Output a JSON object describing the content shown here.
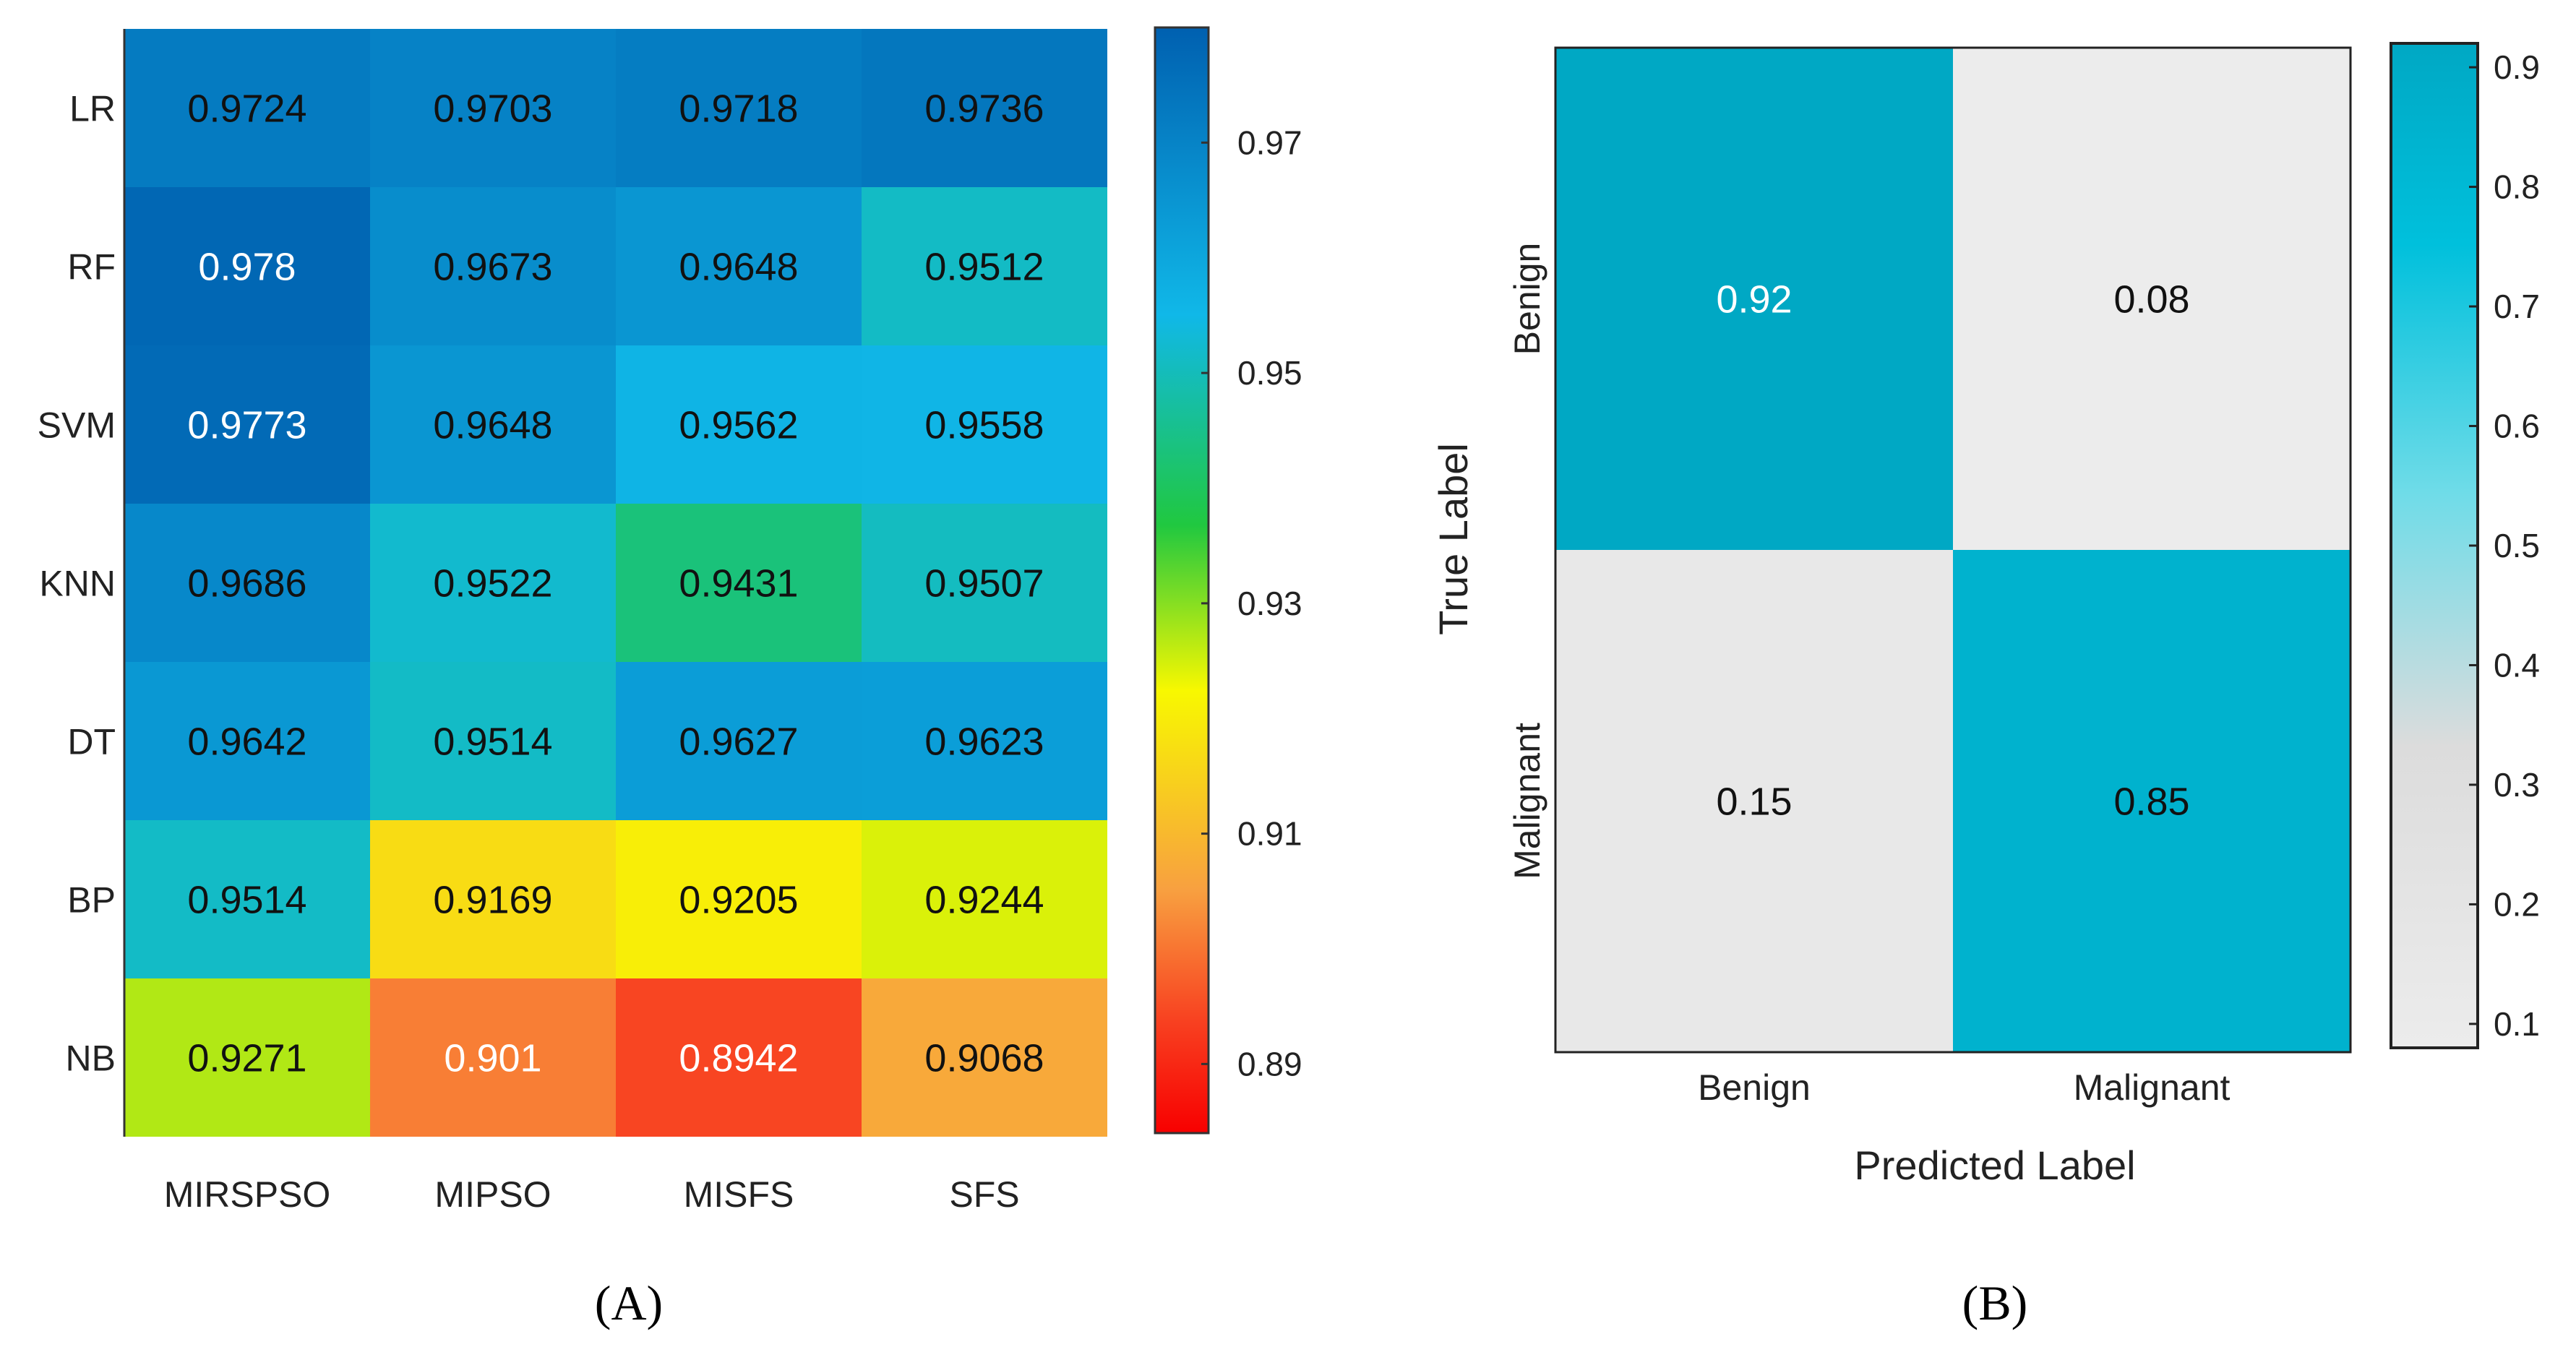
{
  "chart_data": [
    {
      "type": "heatmap",
      "panel_label": "A",
      "rows": [
        "LR",
        "RF",
        "SVM",
        "KNN",
        "DT",
        "BP",
        "NB"
      ],
      "columns": [
        "MIRSPSO",
        "MIPSO",
        "MISFS",
        "SFS"
      ],
      "values": [
        [
          0.9724,
          0.9703,
          0.9718,
          0.9736
        ],
        [
          0.978,
          0.9673,
          0.9648,
          0.9512
        ],
        [
          0.9773,
          0.9648,
          0.9562,
          0.9558
        ],
        [
          0.9686,
          0.9522,
          0.9431,
          0.9507
        ],
        [
          0.9642,
          0.9514,
          0.9627,
          0.9623
        ],
        [
          0.9514,
          0.9169,
          0.9205,
          0.9244
        ],
        [
          0.9271,
          0.901,
          0.8942,
          0.9068
        ]
      ],
      "value_labels": [
        [
          "0.9724",
          "0.9703",
          "0.9718",
          "0.9736"
        ],
        [
          "0.978",
          "0.9673",
          "0.9648",
          "0.9512"
        ],
        [
          "0.9773",
          "0.9648",
          "0.9562",
          "0.9558"
        ],
        [
          "0.9686",
          "0.9522",
          "0.9431",
          "0.9507"
        ],
        [
          "0.9642",
          "0.9514",
          "0.9627",
          "0.9623"
        ],
        [
          "0.9514",
          "0.9169",
          "0.9205",
          "0.9244"
        ],
        [
          "0.9271",
          "0.901",
          "0.8942",
          "0.9068"
        ]
      ],
      "colorbar": {
        "range": [
          0.884,
          0.98
        ],
        "ticks": [
          0.97,
          0.95,
          0.93,
          0.91,
          0.89
        ],
        "tick_labels": [
          "0.97",
          "0.95",
          "0.93",
          "0.91",
          "0.89"
        ]
      },
      "xlabel": "",
      "ylabel": "",
      "colors": {
        "high": "#0060b0",
        "mid_high": "#10b8e8",
        "mid": "#20c840",
        "mid_low": "#f8f800",
        "low": "#f8a040",
        "min": "#f80000"
      }
    },
    {
      "type": "heatmap",
      "subtype": "confusion_matrix",
      "panel_label": "B",
      "rows": [
        "Benign",
        "Malignant"
      ],
      "columns": [
        "Benign",
        "Malignant"
      ],
      "values": [
        [
          0.92,
          0.08
        ],
        [
          0.15,
          0.85
        ]
      ],
      "value_labels": [
        [
          "0.92",
          "0.08"
        ],
        [
          "0.15",
          "0.85"
        ]
      ],
      "xlabel": "Predicted Label",
      "ylabel": "True Label",
      "colorbar": {
        "range": [
          0.08,
          0.92
        ],
        "ticks": [
          0.9,
          0.8,
          0.7,
          0.6,
          0.5,
          0.4,
          0.3,
          0.2,
          0.1
        ],
        "tick_labels": [
          "0.9",
          "0.8",
          "0.7",
          "0.6",
          "0.5",
          "0.4",
          "0.3",
          "0.2",
          "0.1"
        ]
      },
      "colors": {
        "high": "#00a8c4",
        "low": "#ececec"
      }
    }
  ],
  "captions": {
    "a": "(A)",
    "b": "(B)"
  }
}
